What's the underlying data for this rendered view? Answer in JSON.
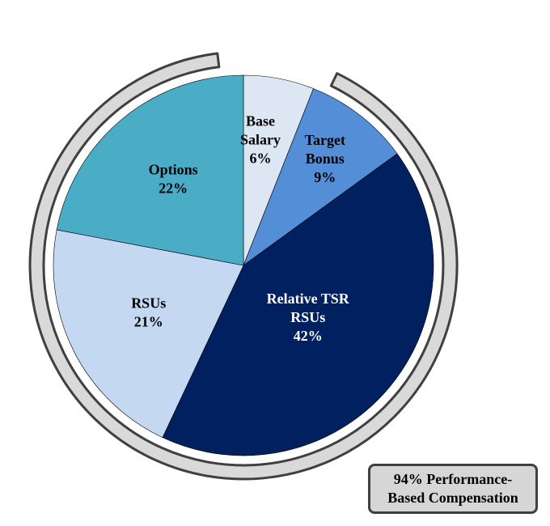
{
  "chart_data": {
    "type": "pie",
    "slices": [
      {
        "label_lines": [
          "Base",
          "Salary"
        ],
        "value": 6,
        "value_label": "6%",
        "color": "#dde6f3",
        "text_color": "#000000"
      },
      {
        "label_lines": [
          "Target",
          "Bonus"
        ],
        "value": 9,
        "value_label": "9%",
        "color": "#538ed6",
        "text_color": "#000000"
      },
      {
        "label_lines": [
          "Relative TSR",
          "RSUs"
        ],
        "value": 42,
        "value_label": "42%",
        "color": "#002060",
        "text_color": "#ffffff"
      },
      {
        "label_lines": [
          "RSUs"
        ],
        "value": 21,
        "value_label": "21%",
        "color": "#c5d8f1",
        "text_color": "#000000"
      },
      {
        "label_lines": [
          "Options"
        ],
        "value": 22,
        "value_label": "22%",
        "color": "#4bacc6",
        "text_color": "#000000"
      }
    ],
    "slice_border_color": "#000000",
    "ring_fill": "#d9d9d9",
    "ring_border": "#404040",
    "callout": {
      "line1": "94% Performance-",
      "line2": "Based Compensation"
    }
  }
}
